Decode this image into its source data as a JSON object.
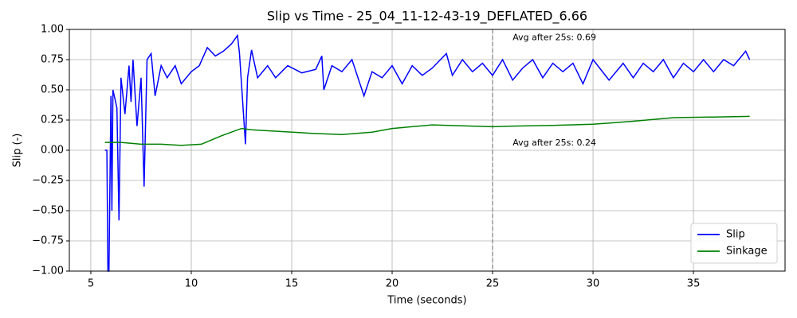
{
  "chart_data": {
    "type": "line",
    "title": "Slip vs Time - 25_04_11-12-43-19_DEFLATED_6.66",
    "x_label": "Time (seconds)",
    "y_label": "Slip (-)",
    "xlim": [
      3.93,
      39.56
    ],
    "ylim": [
      -1,
      1
    ],
    "xticks": [
      5,
      10,
      15,
      20,
      25,
      30,
      35
    ],
    "yticks": [
      {
        "value": -1,
        "label": "−1.00"
      },
      {
        "value": -0.75,
        "label": "−0.75"
      },
      {
        "value": -0.5,
        "label": "−0.50"
      },
      {
        "value": -0.25,
        "label": "−0.25"
      },
      {
        "value": 0,
        "label": "0.00"
      },
      {
        "value": 0.25,
        "label": "0.25"
      },
      {
        "value": 0.5,
        "label": "0.50"
      },
      {
        "value": 0.75,
        "label": "0.75"
      },
      {
        "value": 1,
        "label": "1.00"
      }
    ],
    "grid": true,
    "legend": "lower right",
    "vline": 25,
    "annotations": [
      "Avg after 25s: 0.69",
      "Avg after 25s: 0.24"
    ],
    "series": [
      {
        "name": "Slip",
        "color": "#0000ff",
        "x": [
          5.7,
          5.8,
          5.85,
          5.9,
          6.0,
          6.05,
          6.1,
          6.3,
          6.4,
          6.5,
          6.7,
          6.9,
          7.0,
          7.1,
          7.3,
          7.5,
          7.65,
          7.8,
          8.0,
          8.2,
          8.5,
          8.8,
          9.2,
          9.5,
          10,
          10.4,
          10.8,
          11.2,
          11.6,
          12.0,
          12.3,
          12.4,
          12.6,
          12.7,
          12.8,
          13.0,
          13.3,
          13.8,
          14.2,
          14.8,
          15.5,
          16.2,
          16.5,
          16.6,
          17,
          17.5,
          18.0,
          18.6,
          19,
          19.5,
          20,
          20.5,
          21,
          21.5,
          22,
          22.7,
          23,
          23.5,
          24,
          24.5,
          25,
          25.5,
          26,
          26.5,
          27,
          27.5,
          28,
          28.5,
          29,
          29.5,
          30,
          30.8,
          31.5,
          32,
          32.5,
          33,
          33.5,
          34,
          34.5,
          35,
          35.5,
          36,
          36.5,
          37,
          37.6,
          37.8
        ],
        "values": [
          0,
          0,
          -1,
          -1,
          0.45,
          -0.5,
          0.5,
          0.35,
          -0.58,
          0.6,
          0.3,
          0.7,
          0.4,
          0.75,
          0.2,
          0.6,
          -0.3,
          0.75,
          0.8,
          0.45,
          0.7,
          0.6,
          0.7,
          0.55,
          0.65,
          0.7,
          0.85,
          0.78,
          0.82,
          0.88,
          0.95,
          0.8,
          0.3,
          0.05,
          0.6,
          0.83,
          0.6,
          0.7,
          0.6,
          0.7,
          0.64,
          0.67,
          0.78,
          0.5,
          0.7,
          0.65,
          0.75,
          0.45,
          0.65,
          0.6,
          0.7,
          0.55,
          0.7,
          0.62,
          0.68,
          0.8,
          0.62,
          0.75,
          0.65,
          0.72,
          0.62,
          0.75,
          0.58,
          0.68,
          0.75,
          0.6,
          0.72,
          0.65,
          0.72,
          0.55,
          0.75,
          0.58,
          0.72,
          0.6,
          0.72,
          0.65,
          0.75,
          0.6,
          0.72,
          0.65,
          0.75,
          0.65,
          0.75,
          0.7,
          0.82,
          0.75
        ]
      },
      {
        "name": "Sinkage",
        "color": "#008000",
        "x": [
          5.7,
          6.5,
          7.5,
          8.5,
          9.5,
          10.5,
          11.5,
          12.5,
          13,
          14,
          16,
          17.5,
          19,
          20,
          22,
          24,
          25,
          26,
          28,
          30,
          32,
          34,
          36,
          37.8
        ],
        "values": [
          0.065,
          0.065,
          0.05,
          0.05,
          0.04,
          0.05,
          0.12,
          0.18,
          0.17,
          0.16,
          0.14,
          0.13,
          0.15,
          0.18,
          0.21,
          0.2,
          0.195,
          0.2,
          0.205,
          0.215,
          0.24,
          0.27,
          0.275,
          0.28
        ]
      }
    ]
  }
}
